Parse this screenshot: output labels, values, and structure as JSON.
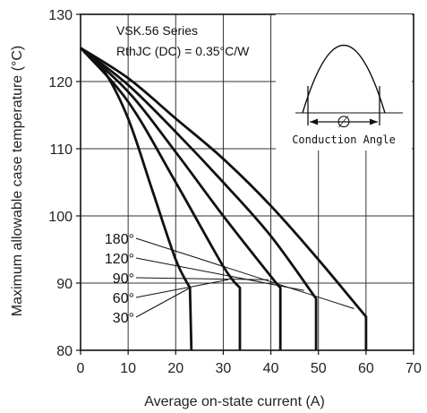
{
  "chart_data": {
    "type": "line",
    "title": "",
    "xlabel": "Average on-state current (A)",
    "ylabel": "Maximum allowable case temperature (°C)",
    "xlim": [
      0,
      70
    ],
    "ylim": [
      80,
      130
    ],
    "x_ticks": [
      "0",
      "10",
      "20",
      "30",
      "40",
      "50",
      "60",
      "70"
    ],
    "y_ticks": [
      "80",
      "90",
      "100",
      "110",
      "120",
      "130"
    ],
    "grid": true,
    "annotations": {
      "series_name": "VSK.56 Series",
      "rth": "RthJC (DC) = 0.35°C/W",
      "inset_label": "Conduction Angle",
      "inset_symbol": "∅"
    },
    "series": [
      {
        "name": "30°",
        "x": [
          0,
          5,
          10,
          15,
          20,
          23,
          23.3
        ],
        "y": [
          125,
          121.5,
          114.5,
          104,
          93.5,
          89.3,
          80
        ]
      },
      {
        "name": "60°",
        "x": [
          0,
          10,
          20,
          30,
          33.5,
          33.5
        ],
        "y": [
          125,
          117,
          105,
          92.5,
          89.3,
          80
        ]
      },
      {
        "name": "90°",
        "x": [
          0,
          10,
          20,
          30,
          40,
          42,
          42
        ],
        "y": [
          125,
          118.5,
          109.5,
          100,
          91,
          89.3,
          80
        ]
      },
      {
        "name": "120°",
        "x": [
          0,
          10,
          20,
          30,
          40,
          49.5,
          49.5
        ],
        "y": [
          125,
          119.5,
          112.5,
          105,
          97,
          87.7,
          80
        ]
      },
      {
        "name": "180°",
        "x": [
          0,
          10,
          20,
          30,
          40,
          50,
          60,
          60
        ],
        "y": [
          125,
          120.5,
          114.5,
          108.5,
          101.5,
          93.5,
          85,
          80
        ]
      }
    ]
  }
}
